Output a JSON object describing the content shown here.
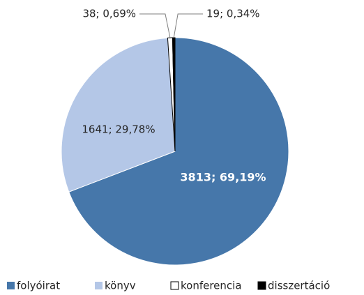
{
  "chart_data": {
    "type": "pie",
    "categories": [
      "folyóirat",
      "könyv",
      "konferencia",
      "disszertáció"
    ],
    "values": [
      3813,
      1641,
      38,
      19
    ],
    "value_labels": [
      "3813; 69,19%",
      "1641; 29,78%",
      "38; 0,69%",
      "19; 0,34%"
    ],
    "colors": [
      "#4677aa",
      "#b4c7e7",
      "#ffffff",
      "#000000"
    ],
    "legend": "bottom"
  }
}
